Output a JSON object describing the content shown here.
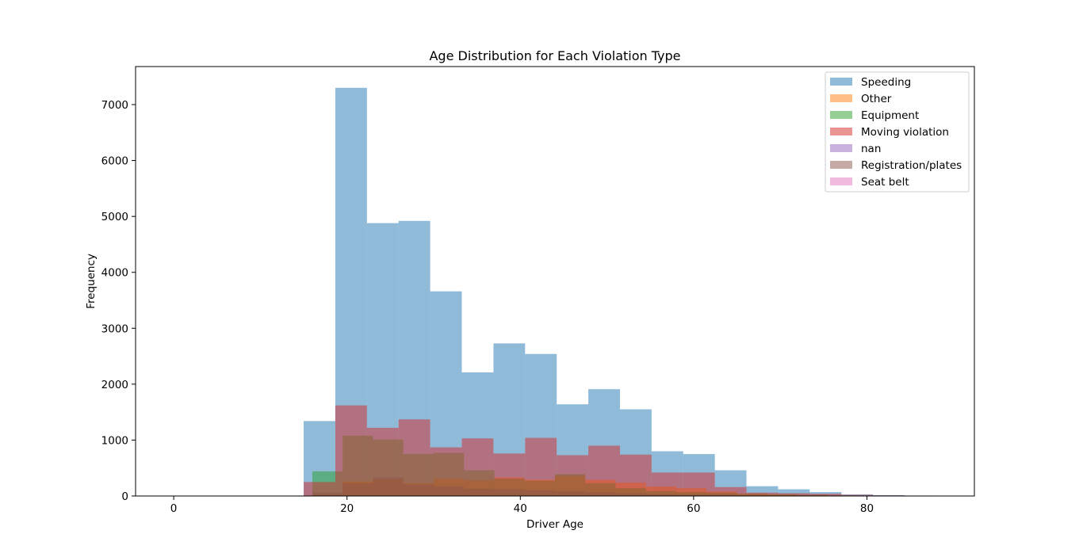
{
  "chart_data": {
    "type": "bar",
    "title": "Age Distribution for Each Violation Type",
    "xlabel": "Driver Age",
    "ylabel": "Frequency",
    "xlim": [
      -4.4,
      92.4
    ],
    "ylim": [
      0,
      7680
    ],
    "x_ticks": [
      0,
      20,
      40,
      60,
      80
    ],
    "y_ticks": [
      0,
      1000,
      2000,
      3000,
      4000,
      5000,
      6000,
      7000
    ],
    "grid": false,
    "legend_position": "top-right",
    "series": [
      {
        "name": "Speeding",
        "color": "#1f77b4",
        "bins": [
          {
            "x0": 15.0,
            "x1": 18.65,
            "count": 1340
          },
          {
            "x0": 18.65,
            "x1": 22.3,
            "count": 7300
          },
          {
            "x0": 22.3,
            "x1": 25.95,
            "count": 4880
          },
          {
            "x0": 25.95,
            "x1": 29.6,
            "count": 4920
          },
          {
            "x0": 29.6,
            "x1": 33.25,
            "count": 3660
          },
          {
            "x0": 33.25,
            "x1": 36.9,
            "count": 2210
          },
          {
            "x0": 36.9,
            "x1": 40.55,
            "count": 2730
          },
          {
            "x0": 40.55,
            "x1": 44.2,
            "count": 2540
          },
          {
            "x0": 44.2,
            "x1": 47.85,
            "count": 1640
          },
          {
            "x0": 47.85,
            "x1": 51.5,
            "count": 1910
          },
          {
            "x0": 51.5,
            "x1": 55.15,
            "count": 1550
          },
          {
            "x0": 55.15,
            "x1": 58.8,
            "count": 800
          },
          {
            "x0": 58.8,
            "x1": 62.45,
            "count": 750
          },
          {
            "x0": 62.45,
            "x1": 66.1,
            "count": 460
          },
          {
            "x0": 66.1,
            "x1": 69.75,
            "count": 175
          },
          {
            "x0": 69.75,
            "x1": 73.4,
            "count": 120
          },
          {
            "x0": 73.4,
            "x1": 77.05,
            "count": 70
          },
          {
            "x0": 77.05,
            "x1": 80.7,
            "count": 30
          },
          {
            "x0": 80.7,
            "x1": 84.35,
            "count": 15
          },
          {
            "x0": 84.35,
            "x1": 88.0,
            "count": 8
          }
        ]
      },
      {
        "name": "Other",
        "color": "#ff7f0e",
        "bins": [
          {
            "x0": 16.0,
            "x1": 19.5,
            "count": 20
          },
          {
            "x0": 19.5,
            "x1": 23.0,
            "count": 260
          },
          {
            "x0": 23.0,
            "x1": 26.5,
            "count": 300
          },
          {
            "x0": 26.5,
            "x1": 30.0,
            "count": 230
          },
          {
            "x0": 30.0,
            "x1": 33.5,
            "count": 310
          },
          {
            "x0": 33.5,
            "x1": 37.0,
            "count": 280
          },
          {
            "x0": 37.0,
            "x1": 40.5,
            "count": 330
          },
          {
            "x0": 40.5,
            "x1": 44.0,
            "count": 290
          },
          {
            "x0": 44.0,
            "x1": 47.5,
            "count": 360
          },
          {
            "x0": 47.5,
            "x1": 51.0,
            "count": 290
          },
          {
            "x0": 51.0,
            "x1": 54.5,
            "count": 240
          },
          {
            "x0": 54.5,
            "x1": 58.0,
            "count": 170
          },
          {
            "x0": 58.0,
            "x1": 61.5,
            "count": 140
          },
          {
            "x0": 61.5,
            "x1": 65.0,
            "count": 80
          },
          {
            "x0": 65.0,
            "x1": 68.5,
            "count": 40
          },
          {
            "x0": 68.5,
            "x1": 72.0,
            "count": 25
          },
          {
            "x0": 72.0,
            "x1": 75.5,
            "count": 15
          },
          {
            "x0": 75.5,
            "x1": 79.0,
            "count": 10
          },
          {
            "x0": 79.0,
            "x1": 82.5,
            "count": 5
          },
          {
            "x0": 82.5,
            "x1": 86.0,
            "count": 3
          }
        ]
      },
      {
        "name": "Equipment",
        "color": "#2ca02c",
        "bins": [
          {
            "x0": 16.0,
            "x1": 19.5,
            "count": 440
          },
          {
            "x0": 19.5,
            "x1": 23.0,
            "count": 1080
          },
          {
            "x0": 23.0,
            "x1": 26.5,
            "count": 1010
          },
          {
            "x0": 26.5,
            "x1": 30.0,
            "count": 750
          },
          {
            "x0": 30.0,
            "x1": 33.5,
            "count": 770
          },
          {
            "x0": 33.5,
            "x1": 37.0,
            "count": 460
          },
          {
            "x0": 37.0,
            "x1": 40.5,
            "count": 310
          },
          {
            "x0": 40.5,
            "x1": 44.0,
            "count": 270
          },
          {
            "x0": 44.0,
            "x1": 47.5,
            "count": 390
          },
          {
            "x0": 47.5,
            "x1": 51.0,
            "count": 230
          },
          {
            "x0": 51.0,
            "x1": 54.5,
            "count": 140
          },
          {
            "x0": 54.5,
            "x1": 58.0,
            "count": 90
          },
          {
            "x0": 58.0,
            "x1": 61.5,
            "count": 70
          },
          {
            "x0": 61.5,
            "x1": 65.0,
            "count": 60
          },
          {
            "x0": 65.0,
            "x1": 68.5,
            "count": 40
          },
          {
            "x0": 68.5,
            "x1": 72.0,
            "count": 30
          },
          {
            "x0": 72.0,
            "x1": 75.5,
            "count": 20
          },
          {
            "x0": 75.5,
            "x1": 79.0,
            "count": 10
          },
          {
            "x0": 79.0,
            "x1": 82.5,
            "count": 5
          },
          {
            "x0": 82.5,
            "x1": 86.0,
            "count": 3
          }
        ]
      },
      {
        "name": "Moving violation",
        "color": "#d62728",
        "bins": [
          {
            "x0": 15.0,
            "x1": 18.65,
            "count": 250
          },
          {
            "x0": 18.65,
            "x1": 22.3,
            "count": 1620
          },
          {
            "x0": 22.3,
            "x1": 25.95,
            "count": 1220
          },
          {
            "x0": 25.95,
            "x1": 29.6,
            "count": 1370
          },
          {
            "x0": 29.6,
            "x1": 33.25,
            "count": 870
          },
          {
            "x0": 33.25,
            "x1": 36.9,
            "count": 1030
          },
          {
            "x0": 36.9,
            "x1": 40.55,
            "count": 760
          },
          {
            "x0": 40.55,
            "x1": 44.2,
            "count": 1040
          },
          {
            "x0": 44.2,
            "x1": 47.85,
            "count": 730
          },
          {
            "x0": 47.85,
            "x1": 51.5,
            "count": 900
          },
          {
            "x0": 51.5,
            "x1": 55.15,
            "count": 740
          },
          {
            "x0": 55.15,
            "x1": 58.8,
            "count": 420
          },
          {
            "x0": 58.8,
            "x1": 62.45,
            "count": 420
          },
          {
            "x0": 62.45,
            "x1": 66.1,
            "count": 160
          },
          {
            "x0": 66.1,
            "x1": 69.75,
            "count": 60
          },
          {
            "x0": 69.75,
            "x1": 73.4,
            "count": 50
          },
          {
            "x0": 73.4,
            "x1": 77.05,
            "count": 40
          },
          {
            "x0": 77.05,
            "x1": 80.7,
            "count": 20
          },
          {
            "x0": 80.7,
            "x1": 84.35,
            "count": 10
          },
          {
            "x0": 84.35,
            "x1": 88.0,
            "count": 5
          }
        ]
      },
      {
        "name": "nan",
        "color": "#9467bd",
        "bins": []
      },
      {
        "name": "Registration/plates",
        "color": "#8c564b",
        "bins": [
          {
            "x0": 16.0,
            "x1": 19.5,
            "count": 60
          },
          {
            "x0": 19.5,
            "x1": 23.0,
            "count": 230
          },
          {
            "x0": 23.0,
            "x1": 26.5,
            "count": 330
          },
          {
            "x0": 26.5,
            "x1": 30.0,
            "count": 210
          },
          {
            "x0": 30.0,
            "x1": 33.5,
            "count": 170
          },
          {
            "x0": 33.5,
            "x1": 37.0,
            "count": 130
          },
          {
            "x0": 37.0,
            "x1": 40.5,
            "count": 120
          },
          {
            "x0": 40.5,
            "x1": 44.0,
            "count": 100
          },
          {
            "x0": 44.0,
            "x1": 47.5,
            "count": 90
          },
          {
            "x0": 47.5,
            "x1": 51.0,
            "count": 70
          },
          {
            "x0": 51.0,
            "x1": 54.5,
            "count": 50
          },
          {
            "x0": 54.5,
            "x1": 58.0,
            "count": 35
          },
          {
            "x0": 58.0,
            "x1": 61.5,
            "count": 25
          },
          {
            "x0": 61.5,
            "x1": 65.0,
            "count": 20
          },
          {
            "x0": 65.0,
            "x1": 68.5,
            "count": 10
          },
          {
            "x0": 68.5,
            "x1": 72.0,
            "count": 8
          },
          {
            "x0": 72.0,
            "x1": 75.5,
            "count": 5
          },
          {
            "x0": 75.5,
            "x1": 79.0,
            "count": 3
          },
          {
            "x0": 79.0,
            "x1": 82.5,
            "count": 2
          },
          {
            "x0": 82.5,
            "x1": 86.0,
            "count": 1
          }
        ]
      },
      {
        "name": "Seat belt",
        "color": "#e377c2",
        "bins": []
      }
    ]
  }
}
